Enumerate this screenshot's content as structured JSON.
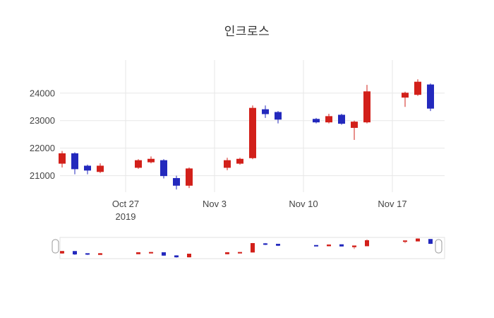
{
  "title": "인크로스",
  "colors": {
    "increasing": "#d2201a",
    "decreasing": "#2329bd",
    "grid": "#e7e7e7",
    "axis_text": "#444444",
    "handle_stroke": "#999999",
    "slider_border": "#e2e2e2"
  },
  "axis": {
    "y_ticks": [
      21000,
      22000,
      23000,
      24000
    ],
    "x_ticks": [
      {
        "label": "Oct 27",
        "sublabel": "2019",
        "day": 0
      },
      {
        "label": "Nov 3",
        "sublabel": "",
        "day": 7
      },
      {
        "label": "Nov 10",
        "sublabel": "",
        "day": 14
      },
      {
        "label": "Nov 17",
        "sublabel": "",
        "day": 21
      }
    ]
  },
  "chart_data": {
    "type": "candlestick",
    "title": "인크로스",
    "dates": [
      "2019-10-22",
      "2019-10-23",
      "2019-10-24",
      "2019-10-25",
      "2019-10-28",
      "2019-10-29",
      "2019-10-30",
      "2019-10-31",
      "2019-11-01",
      "2019-11-04",
      "2019-11-05",
      "2019-11-06",
      "2019-11-07",
      "2019-11-08",
      "2019-11-11",
      "2019-11-12",
      "2019-11-13",
      "2019-11-14",
      "2019-11-15",
      "2019-11-18",
      "2019-11-19",
      "2019-11-20"
    ],
    "day_index": [
      -5,
      -4,
      -3,
      -2,
      1,
      2,
      3,
      4,
      5,
      8,
      9,
      10,
      11,
      12,
      15,
      16,
      17,
      18,
      19,
      22,
      23,
      24
    ],
    "open": [
      21450,
      21800,
      21350,
      21150,
      21300,
      21500,
      21550,
      20900,
      20650,
      21300,
      21450,
      21650,
      23400,
      23300,
      23050,
      22950,
      23200,
      22750,
      22950,
      23850,
      23950,
      24300
    ],
    "high": [
      21900,
      21850,
      21400,
      21450,
      21600,
      21700,
      21600,
      21000,
      21300,
      21650,
      21650,
      23550,
      23550,
      23350,
      23100,
      23250,
      23250,
      23000,
      24300,
      24050,
      24500,
      24350
    ],
    "low": [
      21300,
      21050,
      21050,
      21100,
      21250,
      21450,
      20900,
      20500,
      20550,
      21200,
      21400,
      21600,
      23100,
      22900,
      22900,
      22900,
      22850,
      22300,
      22900,
      23500,
      23900,
      23350
    ],
    "close": [
      21800,
      21250,
      21200,
      21350,
      21550,
      21600,
      21000,
      20650,
      21250,
      21550,
      21600,
      23450,
      23250,
      23050,
      22950,
      23150,
      22900,
      22950,
      24050,
      24000,
      24400,
      23450
    ],
    "ylim": [
      20400,
      25200
    ],
    "grid": true,
    "legend": "none",
    "rangeslider": true
  }
}
